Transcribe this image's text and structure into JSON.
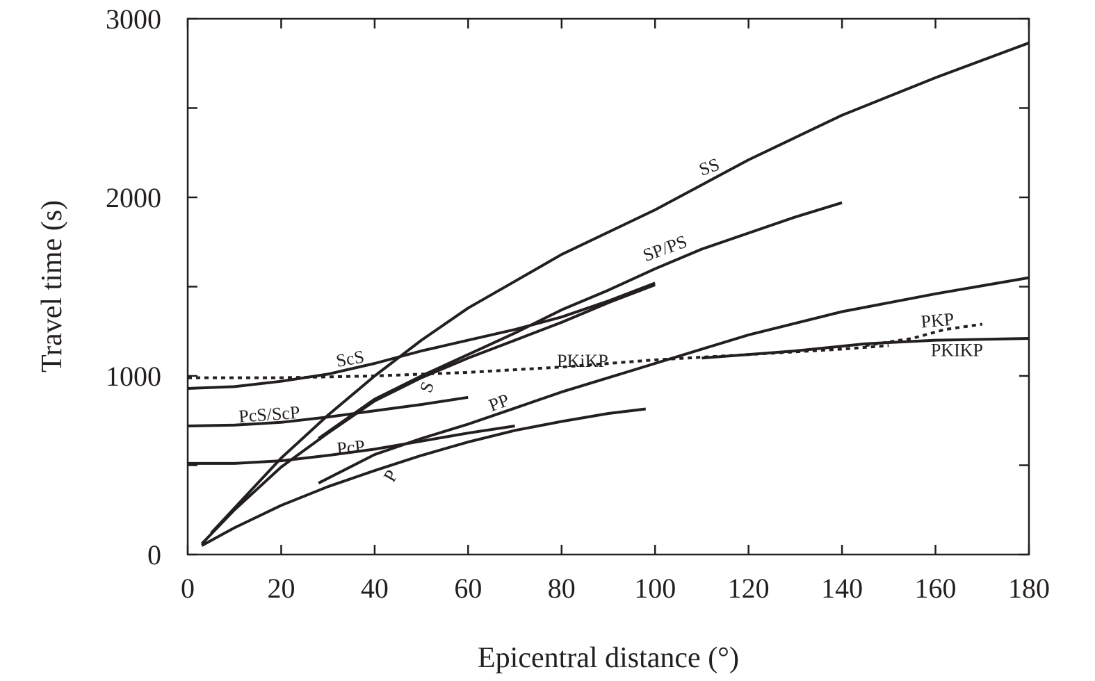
{
  "chart_data": {
    "type": "line",
    "xlabel": "Epicentral distance (°)",
    "ylabel": "Travel time (s)",
    "xlim": [
      0,
      180
    ],
    "ylim": [
      0,
      3000
    ],
    "xticks": [
      0,
      20,
      40,
      60,
      80,
      100,
      120,
      140,
      160,
      180
    ],
    "yticks": [
      0,
      1000,
      2000,
      3000
    ],
    "yminor": [
      500,
      1500,
      2500
    ],
    "grid": false,
    "line_color": "#231f20",
    "series": [
      {
        "name": "P",
        "x": [
          3,
          10,
          20,
          30,
          40,
          50,
          60,
          70,
          80,
          90,
          98
        ],
        "y": [
          50,
          150,
          275,
          380,
          470,
          555,
          630,
          695,
          745,
          790,
          815
        ]
      },
      {
        "name": "S",
        "x": [
          3,
          10,
          20,
          30,
          40,
          50,
          60,
          70,
          80,
          90,
          100
        ],
        "y": [
          60,
          250,
          490,
          680,
          860,
          990,
          1100,
          1200,
          1300,
          1410,
          1510
        ]
      },
      {
        "name": "PP",
        "x": [
          28,
          40,
          50,
          60,
          70,
          80,
          90,
          100,
          120,
          140,
          160,
          180
        ],
        "y": [
          400,
          560,
          650,
          730,
          820,
          910,
          990,
          1070,
          1230,
          1360,
          1460,
          1550
        ]
      },
      {
        "name": "SS",
        "x": [
          5,
          20,
          30,
          40,
          50,
          60,
          70,
          80,
          100,
          120,
          140,
          160,
          180
        ],
        "y": [
          120,
          540,
          780,
          1000,
          1200,
          1380,
          1530,
          1680,
          1930,
          2210,
          2460,
          2670,
          2865
        ]
      },
      {
        "name": "SP/PS",
        "x": [
          28,
          40,
          50,
          60,
          70,
          80,
          90,
          100,
          110,
          120,
          130,
          140
        ],
        "y": [
          650,
          870,
          1000,
          1120,
          1240,
          1370,
          1480,
          1600,
          1710,
          1800,
          1890,
          1970
        ]
      },
      {
        "name": "ScS",
        "x": [
          0,
          10,
          20,
          30,
          40,
          50,
          60,
          70,
          80,
          90,
          100
        ],
        "y": [
          930,
          940,
          970,
          1010,
          1070,
          1140,
          1200,
          1260,
          1330,
          1420,
          1520
        ]
      },
      {
        "name": "PKiKP",
        "x": [
          0,
          20,
          40,
          60,
          80,
          100,
          120,
          140,
          150
        ],
        "y": [
          990,
          990,
          1000,
          1020,
          1050,
          1090,
          1120,
          1150,
          1170
        ]
      },
      {
        "name": "PcS/ScP",
        "x": [
          0,
          10,
          20,
          30,
          40,
          50,
          60
        ],
        "y": [
          720,
          725,
          740,
          770,
          805,
          840,
          880
        ]
      },
      {
        "name": "PcP",
        "x": [
          0,
          10,
          20,
          30,
          40,
          50,
          60,
          70
        ],
        "y": [
          510,
          510,
          525,
          555,
          590,
          635,
          680,
          720
        ]
      },
      {
        "name": "PKP",
        "x": [
          145,
          155,
          162,
          170
        ],
        "y": [
          1170,
          1210,
          1260,
          1290
        ]
      },
      {
        "name": "PKIKP",
        "x": [
          110,
          130,
          145,
          160,
          180
        ],
        "y": [
          1100,
          1140,
          1180,
          1200,
          1210
        ]
      }
    ],
    "annotations": [
      {
        "text": "SS",
        "x": 110,
        "y": 2120,
        "rot": -20
      },
      {
        "text": "SP/PS",
        "x": 98,
        "y": 1640,
        "rot": -20
      },
      {
        "text": "ScS",
        "x": 32,
        "y": 1050,
        "rot": -10
      },
      {
        "text": "PKiKP",
        "x": 79,
        "y": 1050,
        "rot": 0
      },
      {
        "text": "S",
        "x": 52,
        "y": 900,
        "rot": -70
      },
      {
        "text": "PcS/ScP",
        "x": 11,
        "y": 740,
        "rot": -4
      },
      {
        "text": "PP",
        "x": 65,
        "y": 800,
        "rot": -20
      },
      {
        "text": "PcP",
        "x": 32,
        "y": 560,
        "rot": -5
      },
      {
        "text": "P",
        "x": 44,
        "y": 400,
        "rot": -60
      },
      {
        "text": "PKP",
        "x": 157,
        "y": 1270,
        "rot": -5
      },
      {
        "text": "PKIKP",
        "x": 159,
        "y": 1110,
        "rot": 0
      }
    ]
  }
}
